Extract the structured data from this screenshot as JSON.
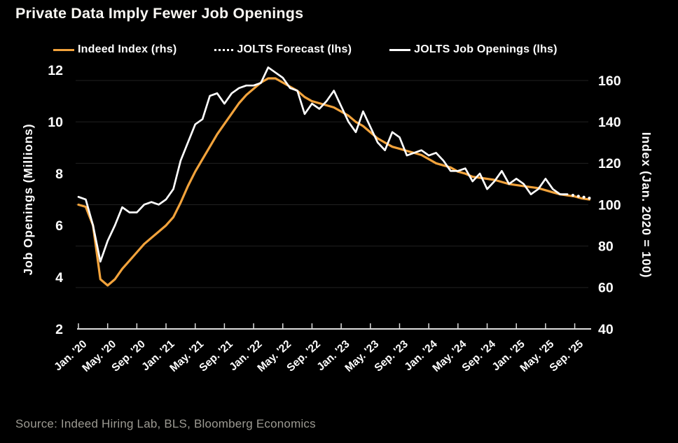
{
  "title": "Private Data Imply Fewer Job Openings",
  "source": "Source: Indeed Hiring Lab, BLS, Bloomberg Economics",
  "colors": {
    "background": "#000000",
    "orange": "#f2a33c",
    "white": "#ffffff",
    "grid": "#212121",
    "axis": "#dddddd",
    "text": "#ffffff"
  },
  "legend": [
    {
      "label": "Indeed Index (rhs)",
      "marker": "solid-orange"
    },
    {
      "label": "JOLTS Forecast (lhs)",
      "marker": "dotted-white"
    },
    {
      "label": "JOLTS Job Openings (lhs)",
      "marker": "solid-white"
    }
  ],
  "chart_data": {
    "type": "line",
    "title": "Private Data Imply Fewer Job Openings",
    "x_start": "Jan. 2020",
    "x_end": "Nov. 2025",
    "x_tick_labels": [
      "Jan. '20",
      "May. '20",
      "Sep. '20",
      "Jan. '21",
      "May. '21",
      "Sep. '21",
      "Jan. '22",
      "May. '22",
      "Sep. '22",
      "Jan. '23",
      "May. '23",
      "Sep. '23",
      "Jan. '24",
      "May. '24",
      "Sep. '24",
      "Jan. '25",
      "May. '25",
      "Sep. '25"
    ],
    "x_tick_month_step": 4,
    "left_axis": {
      "label": "Job Openings (Millions)",
      "ticks": [
        2,
        4,
        6,
        8,
        10,
        12
      ],
      "range": [
        2,
        12
      ]
    },
    "right_axis": {
      "label": "Index (Jan. 2020 = 100)",
      "ticks": [
        40,
        60,
        80,
        100,
        120,
        140,
        160
      ],
      "range": [
        40,
        160
      ]
    },
    "grid": "horizontal-on",
    "legend_position": "top",
    "series": [
      {
        "name": "Indeed Index (rhs)",
        "axis": "right",
        "style": "solid",
        "color": "#f2a33c",
        "start_month_index": 0,
        "values": [
          100,
          99,
          90,
          64,
          61,
          64,
          69,
          73,
          77,
          81,
          84,
          87,
          90,
          94,
          101,
          109,
          116,
          122,
          128,
          134,
          139,
          144,
          149,
          153,
          156,
          159,
          161,
          161,
          159,
          157,
          155,
          152,
          150,
          149,
          148,
          147,
          145,
          143,
          140,
          138,
          135,
          132,
          130,
          128,
          127,
          126,
          125,
          124,
          122,
          120,
          119,
          118,
          116,
          115,
          113.5,
          113,
          112.5,
          112,
          111,
          110,
          109.5,
          109,
          108.5,
          108,
          107,
          106,
          105,
          104.5,
          104,
          103,
          102.5
        ]
      },
      {
        "name": "JOLTS Job Openings (lhs)",
        "axis": "left",
        "style": "solid",
        "color": "#ffffff",
        "start_month_index": 0,
        "values": [
          7.1,
          7.0,
          6.0,
          4.6,
          5.4,
          6.0,
          6.7,
          6.5,
          6.5,
          6.8,
          6.9,
          6.8,
          7.0,
          7.4,
          8.5,
          9.2,
          9.9,
          10.1,
          11.0,
          11.1,
          10.7,
          11.1,
          11.3,
          11.4,
          11.4,
          11.5,
          12.1,
          11.9,
          11.7,
          11.3,
          11.2,
          10.3,
          10.7,
          10.5,
          10.8,
          11.2,
          10.6,
          10.0,
          9.6,
          10.4,
          9.8,
          9.2,
          8.9,
          9.6,
          9.4,
          8.7,
          8.8,
          8.9,
          8.7,
          8.8,
          8.5,
          8.1,
          8.1,
          8.2,
          7.7,
          8.0,
          7.4,
          7.7,
          8.1,
          7.6,
          7.8,
          7.6,
          7.2,
          7.4,
          7.8,
          7.4,
          7.2,
          7.2
        ]
      },
      {
        "name": "JOLTS Forecast (lhs)",
        "axis": "left",
        "style": "dotted",
        "color": "#ffffff",
        "start_month_index": 67,
        "values": [
          7.2,
          7.15,
          7.1,
          7.05
        ]
      }
    ]
  }
}
